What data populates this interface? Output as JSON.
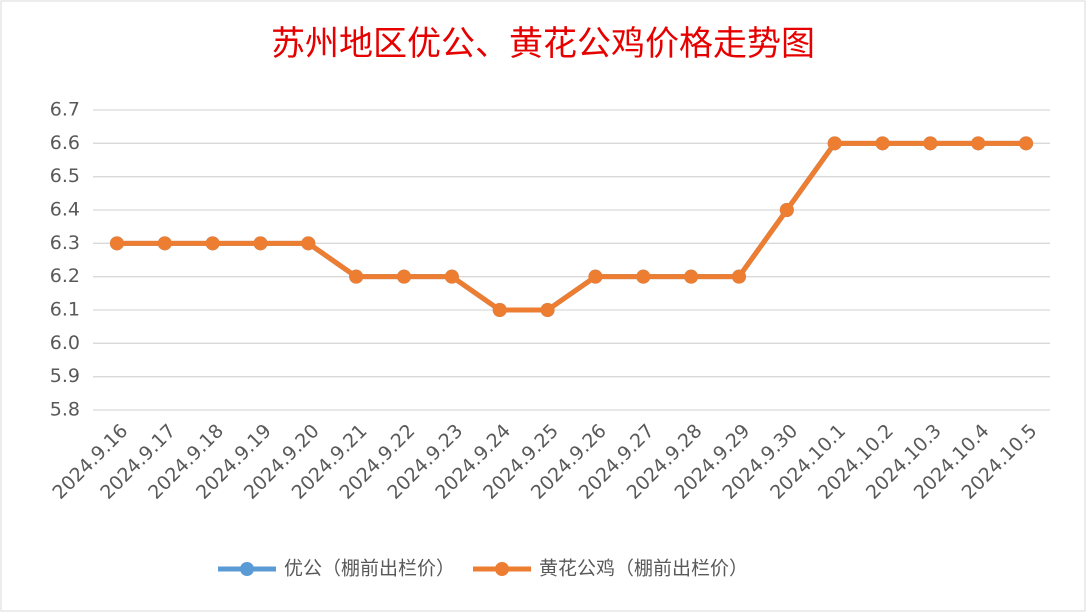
{
  "chart_data": {
    "type": "line",
    "title": "苏州地区优公、黄花公鸡价格走势图",
    "categories": [
      "2024.9.16",
      "2024.9.17",
      "2024.9.18",
      "2024.9.19",
      "2024.9.20",
      "2024.9.21",
      "2024.9.22",
      "2024.9.23",
      "2024.9.24",
      "2024.9.25",
      "2024.9.26",
      "2024.9.27",
      "2024.9.28",
      "2024.9.29",
      "2024.9.30",
      "2024.10.1",
      "2024.10.2",
      "2024.10.3",
      "2024.10.4",
      "2024.10.5"
    ],
    "series": [
      {
        "name": "优公（棚前出栏价）",
        "color": "#5b9bd5",
        "values": [
          6.3,
          6.3,
          6.3,
          6.3,
          6.3,
          6.2,
          6.2,
          6.2,
          6.1,
          6.1,
          6.2,
          6.2,
          6.2,
          6.2,
          6.4,
          6.6,
          6.6,
          6.6,
          6.6,
          6.6
        ]
      },
      {
        "name": "黄花公鸡（棚前出栏价）",
        "color": "#ed7d31",
        "values": [
          6.3,
          6.3,
          6.3,
          6.3,
          6.3,
          6.2,
          6.2,
          6.2,
          6.1,
          6.1,
          6.2,
          6.2,
          6.2,
          6.2,
          6.4,
          6.6,
          6.6,
          6.6,
          6.6,
          6.6
        ]
      }
    ],
    "ylim": [
      5.8,
      6.7
    ],
    "yticks": [
      5.8,
      5.9,
      {
        "value": 6,
        "label": "6.0"
      },
      6.1,
      6.2,
      6.3,
      6.4,
      6.5,
      6.6,
      6.7
    ],
    "grid": true,
    "legend": "bottom"
  }
}
